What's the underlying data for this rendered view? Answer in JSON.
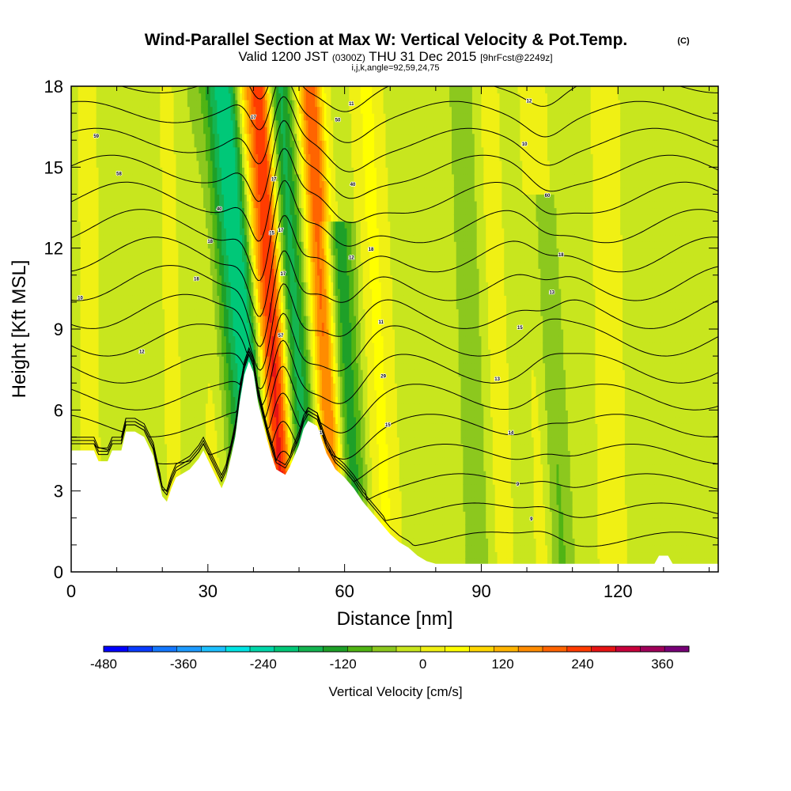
{
  "header": {
    "title": "Wind-Parallel Section at Max W: Vertical Velocity & Pot.Temp.",
    "copyright": "(C)",
    "valid_main": "Valid 1200 JST",
    "valid_utc": "(0300Z)",
    "valid_date": "THU 31 Dec 2015",
    "forecast": "[9hrFcst@2249z]",
    "section_info": "i,j,k,angle=92,59,24,75"
  },
  "chart_data": {
    "type": "heatmap",
    "title": "Wind-Parallel Section at Max W: Vertical Velocity & Pot.Temp.",
    "xlabel": "Distance [nm]",
    "ylabel": "Height [Kft MSL]",
    "xlim": [
      0,
      142
    ],
    "ylim": [
      0,
      18
    ],
    "xticks": [
      0,
      30,
      60,
      90,
      120
    ],
    "yticks": [
      0,
      3,
      6,
      9,
      12,
      15,
      18
    ],
    "terrain_kft": [
      [
        0,
        4.5
      ],
      [
        5,
        4.5
      ],
      [
        6,
        4.1
      ],
      [
        8,
        4.1
      ],
      [
        9,
        4.5
      ],
      [
        11,
        4.5
      ],
      [
        12,
        5.2
      ],
      [
        14,
        5.2
      ],
      [
        16,
        5.0
      ],
      [
        18,
        4.3
      ],
      [
        19,
        3.5
      ],
      [
        20,
        2.8
      ],
      [
        21,
        2.6
      ],
      [
        22,
        3.1
      ],
      [
        23,
        3.5
      ],
      [
        26,
        3.8
      ],
      [
        28,
        4.2
      ],
      [
        29,
        4.5
      ],
      [
        31,
        3.8
      ],
      [
        33,
        3.1
      ],
      [
        34,
        3.5
      ],
      [
        35,
        4.2
      ],
      [
        36,
        5.0
      ],
      [
        37,
        6.3
      ],
      [
        38,
        7.3
      ],
      [
        39,
        7.8
      ],
      [
        40,
        7.4
      ],
      [
        41,
        6.3
      ],
      [
        42,
        5.6
      ],
      [
        43,
        4.9
      ],
      [
        44,
        4.3
      ],
      [
        45,
        3.8
      ],
      [
        47,
        3.6
      ],
      [
        48,
        3.9
      ],
      [
        49,
        4.3
      ],
      [
        50,
        4.7
      ],
      [
        51,
        5.3
      ],
      [
        52,
        5.6
      ],
      [
        54,
        5.4
      ],
      [
        55,
        4.9
      ],
      [
        56,
        4.4
      ],
      [
        58,
        3.8
      ],
      [
        60,
        3.5
      ],
      [
        62,
        3.1
      ],
      [
        64,
        2.6
      ],
      [
        66,
        2.2
      ],
      [
        68,
        1.8
      ],
      [
        70,
        1.4
      ],
      [
        72,
        1.1
      ],
      [
        74,
        0.9
      ],
      [
        76,
        0.6
      ],
      [
        78,
        0.4
      ],
      [
        80,
        0.3
      ],
      [
        128,
        0.3
      ],
      [
        129,
        0.6
      ],
      [
        131,
        0.6
      ],
      [
        132,
        0.3
      ],
      [
        142,
        0.3
      ]
    ],
    "vertical_velocity_features": [
      {
        "x": 38.0,
        "w": 5.5,
        "v": -220,
        "top": 18,
        "tilt": -0.55
      },
      {
        "x": 44.5,
        "w": 2.6,
        "v": 330,
        "top": 18,
        "tilt": -0.35
      },
      {
        "x": 41.8,
        "w": 2.2,
        "v": 180,
        "top": 18,
        "tilt": -0.45
      },
      {
        "x": 49.0,
        "w": 3.2,
        "v": -160,
        "top": 18,
        "tilt": -0.4
      },
      {
        "x": 55.5,
        "w": 2.8,
        "v": 260,
        "top": 18,
        "tilt": -0.35
      },
      {
        "x": 59.5,
        "w": 3.5,
        "v": -140,
        "top": 13,
        "tilt": -0.3
      },
      {
        "x": 67.0,
        "w": 3.5,
        "v": 70,
        "top": 18,
        "tilt": -0.25
      },
      {
        "x": 31.0,
        "w": 3.0,
        "v": 45,
        "top": 18,
        "tilt": -0.2
      },
      {
        "x": 22.0,
        "w": 3.0,
        "v": 30,
        "top": 18,
        "tilt": -0.1
      },
      {
        "x": 88.0,
        "w": 3.5,
        "v": -40,
        "top": 18,
        "tilt": -0.2
      },
      {
        "x": 93.0,
        "w": 3.0,
        "v": 45,
        "top": 18,
        "tilt": -0.2
      },
      {
        "x": 104.5,
        "w": 2.8,
        "v": -90,
        "top": 14,
        "tilt": -0.3
      },
      {
        "x": 103.0,
        "w": 3.0,
        "v": 60,
        "top": 18,
        "tilt": -0.2
      },
      {
        "x": 118.0,
        "w": 4.0,
        "v": 40,
        "top": 18,
        "tilt": -0.1
      },
      {
        "x": 4.0,
        "w": 3.0,
        "v": 35,
        "top": 18,
        "tilt": -0.05
      }
    ],
    "potential_temperature_isentropes": {
      "count": 17,
      "contour_labels": [
        {
          "text": "59",
          "x": 5.5,
          "y": 16.1
        },
        {
          "text": "58",
          "x": 10.5,
          "y": 14.7
        },
        {
          "text": "40",
          "x": 32.5,
          "y": 13.4
        },
        {
          "text": "18",
          "x": 30.5,
          "y": 12.2
        },
        {
          "text": "18",
          "x": 27.5,
          "y": 10.8
        },
        {
          "text": "10",
          "x": 2.0,
          "y": 10.1
        },
        {
          "text": "12",
          "x": 15.5,
          "y": 8.1
        },
        {
          "text": "17",
          "x": 40.0,
          "y": 16.8
        },
        {
          "text": "17",
          "x": 44.5,
          "y": 14.5
        },
        {
          "text": "15",
          "x": 44.0,
          "y": 12.5
        },
        {
          "text": "17",
          "x": 46.0,
          "y": 12.6
        },
        {
          "text": "17",
          "x": 46.5,
          "y": 11.0
        },
        {
          "text": "57",
          "x": 46.0,
          "y": 8.7
        },
        {
          "text": "51",
          "x": 54.5,
          "y": 5.1
        },
        {
          "text": "50",
          "x": 58.5,
          "y": 16.7
        },
        {
          "text": "11",
          "x": 61.5,
          "y": 17.3
        },
        {
          "text": "40",
          "x": 61.8,
          "y": 14.3
        },
        {
          "text": "12",
          "x": 61.5,
          "y": 11.6
        },
        {
          "text": "18",
          "x": 65.8,
          "y": 11.9
        },
        {
          "text": "11",
          "x": 68.0,
          "y": 9.2
        },
        {
          "text": "29",
          "x": 68.5,
          "y": 7.2
        },
        {
          "text": "15",
          "x": 69.5,
          "y": 5.4
        },
        {
          "text": "12",
          "x": 100.5,
          "y": 17.4
        },
        {
          "text": "10",
          "x": 99.5,
          "y": 15.8
        },
        {
          "text": "60",
          "x": 104.5,
          "y": 13.9
        },
        {
          "text": "18",
          "x": 107.5,
          "y": 11.7
        },
        {
          "text": "13",
          "x": 105.5,
          "y": 10.3
        },
        {
          "text": "15",
          "x": 98.5,
          "y": 9.0
        },
        {
          "text": "13",
          "x": 93.5,
          "y": 7.1
        },
        {
          "text": "14",
          "x": 96.5,
          "y": 5.1
        },
        {
          "text": "9",
          "x": 98.0,
          "y": 3.2
        },
        {
          "text": "9",
          "x": 101.0,
          "y": 1.9
        }
      ]
    },
    "colorbar": {
      "min": -480,
      "max": 400,
      "step": 40,
      "tick_labels": [
        "-480",
        "-360",
        "-240",
        "-120",
        "0",
        "120",
        "240",
        "360"
      ],
      "tick_values": [
        -480,
        -360,
        -240,
        -120,
        0,
        120,
        240,
        360
      ],
      "label": "Vertical Velocity [cm/s]",
      "colors": [
        "#0000ff",
        "#0a3cff",
        "#1478ff",
        "#1e9bff",
        "#1ec0ff",
        "#00e5e5",
        "#00d7aa",
        "#00c878",
        "#14b450",
        "#1ea028",
        "#50b414",
        "#8cc81e",
        "#c8e61e",
        "#f0f014",
        "#ffff00",
        "#ffd700",
        "#ffb400",
        "#ff8c00",
        "#ff6400",
        "#ff3c00",
        "#e61414",
        "#c8003c",
        "#a0005a",
        "#780078"
      ]
    }
  }
}
